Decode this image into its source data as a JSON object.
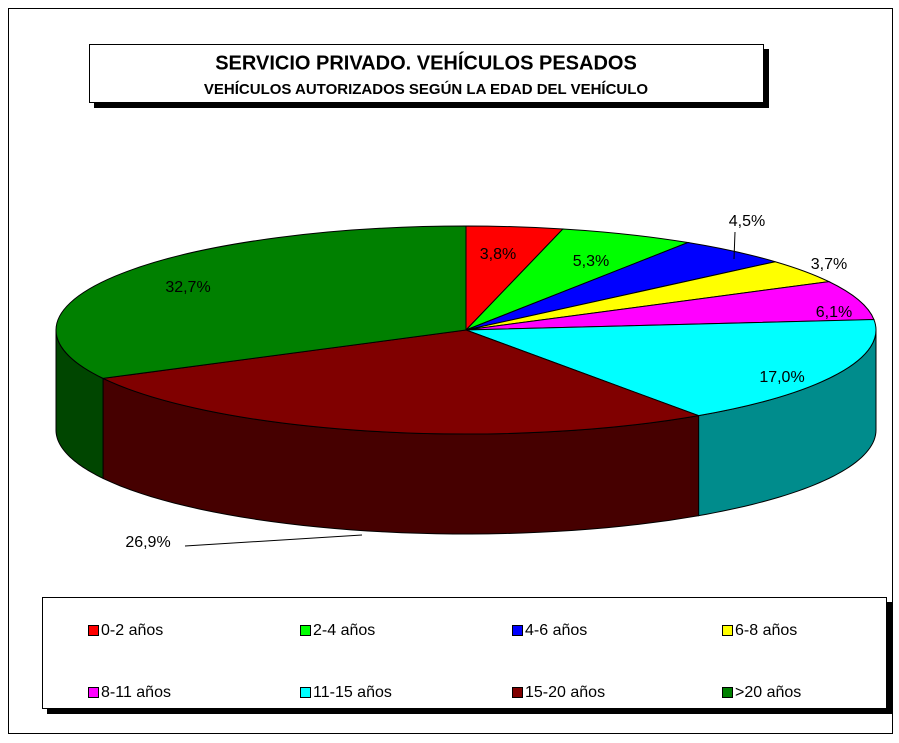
{
  "chart_data": {
    "type": "pie",
    "title": "SERVICIO PRIVADO. VEHÍCULOS PESADOS",
    "subtitle": "VEHÍCULOS  AUTORIZADOS  SEGÚN  LA EDAD DEL VEHÍCULO",
    "categories": [
      "0-2 años",
      "2-4 años",
      "4-6 años",
      "6-8 años",
      "8-11 años",
      "11-15 años",
      "15-20 años",
      ">20 años"
    ],
    "values": [
      3.8,
      5.3,
      4.5,
      3.7,
      6.1,
      17.0,
      26.9,
      32.7
    ],
    "value_labels": [
      "3,8%",
      "5,3%",
      "4,5%",
      "3,7%",
      "6,1%",
      "17,0%",
      "26,9%",
      "32,7%"
    ],
    "colors": [
      "#ff0000",
      "#00ff00",
      "#0000ff",
      "#ffff00",
      "#ff00ff",
      "#00ffff",
      "#800000",
      "#008000"
    ],
    "legend": "bottom"
  }
}
